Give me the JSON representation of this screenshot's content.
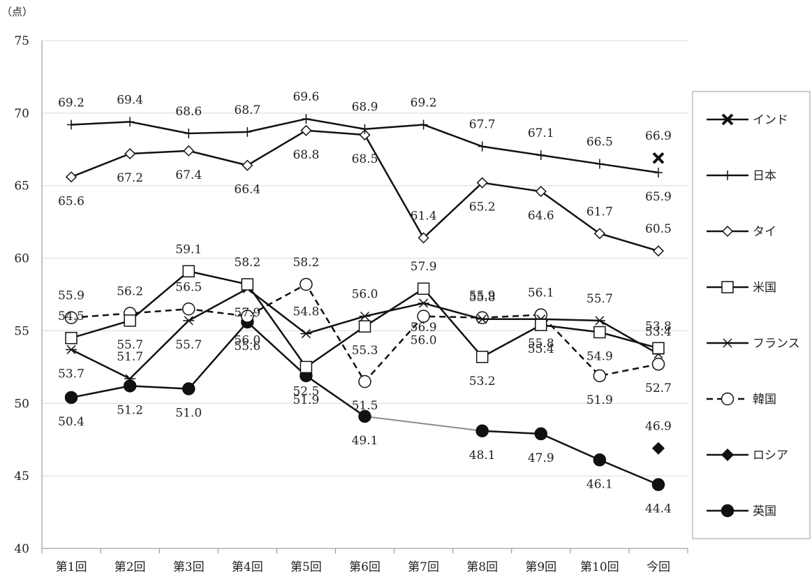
{
  "chart_data": {
    "type": "line",
    "title": "",
    "xlabel": "",
    "ylabel": "",
    "unit_label": "（点）",
    "ylim": [
      40,
      75
    ],
    "yticks": [
      40,
      45,
      50,
      55,
      60,
      65,
      70,
      75
    ],
    "grid": "horizontal",
    "legend_position": "right",
    "categories": [
      "第1回",
      "第2回",
      "第3回",
      "第4回",
      "第5回",
      "第6回",
      "第7回",
      "第8回",
      "第9回",
      "第10回",
      "今回"
    ],
    "series": [
      {
        "name": "インド",
        "marker": "x",
        "values": [
          null,
          null,
          null,
          null,
          null,
          null,
          null,
          null,
          null,
          null,
          66.9
        ]
      },
      {
        "name": "日本",
        "marker": "plus",
        "values": [
          69.2,
          69.4,
          68.6,
          68.7,
          69.6,
          68.9,
          69.2,
          67.7,
          67.1,
          66.5,
          65.9
        ]
      },
      {
        "name": "タイ",
        "marker": "diamond-open",
        "values": [
          65.6,
          67.2,
          67.4,
          66.4,
          68.8,
          68.5,
          61.4,
          65.2,
          64.6,
          61.7,
          60.5
        ]
      },
      {
        "name": "米国",
        "marker": "square-open",
        "values": [
          54.5,
          55.7,
          59.1,
          58.2,
          52.5,
          55.3,
          57.9,
          53.2,
          55.4,
          54.9,
          53.8
        ]
      },
      {
        "name": "フランス",
        "marker": "asterisk",
        "values": [
          53.7,
          51.7,
          55.7,
          57.9,
          54.8,
          56.0,
          56.9,
          55.8,
          55.8,
          55.7,
          53.4
        ]
      },
      {
        "name": "韓国",
        "marker": "circle-open",
        "dashed": true,
        "values": [
          55.9,
          56.2,
          56.5,
          56.0,
          58.2,
          51.5,
          56.0,
          55.9,
          56.1,
          51.9,
          52.7
        ]
      },
      {
        "name": "ロシア",
        "marker": "diamond-filled",
        "values": [
          null,
          null,
          null,
          null,
          null,
          null,
          null,
          null,
          null,
          null,
          46.9
        ]
      },
      {
        "name": "英国",
        "marker": "circle-filled",
        "values": [
          50.4,
          51.2,
          51.0,
          55.6,
          51.9,
          49.1,
          null,
          48.1,
          47.9,
          46.1,
          44.4
        ]
      }
    ]
  }
}
